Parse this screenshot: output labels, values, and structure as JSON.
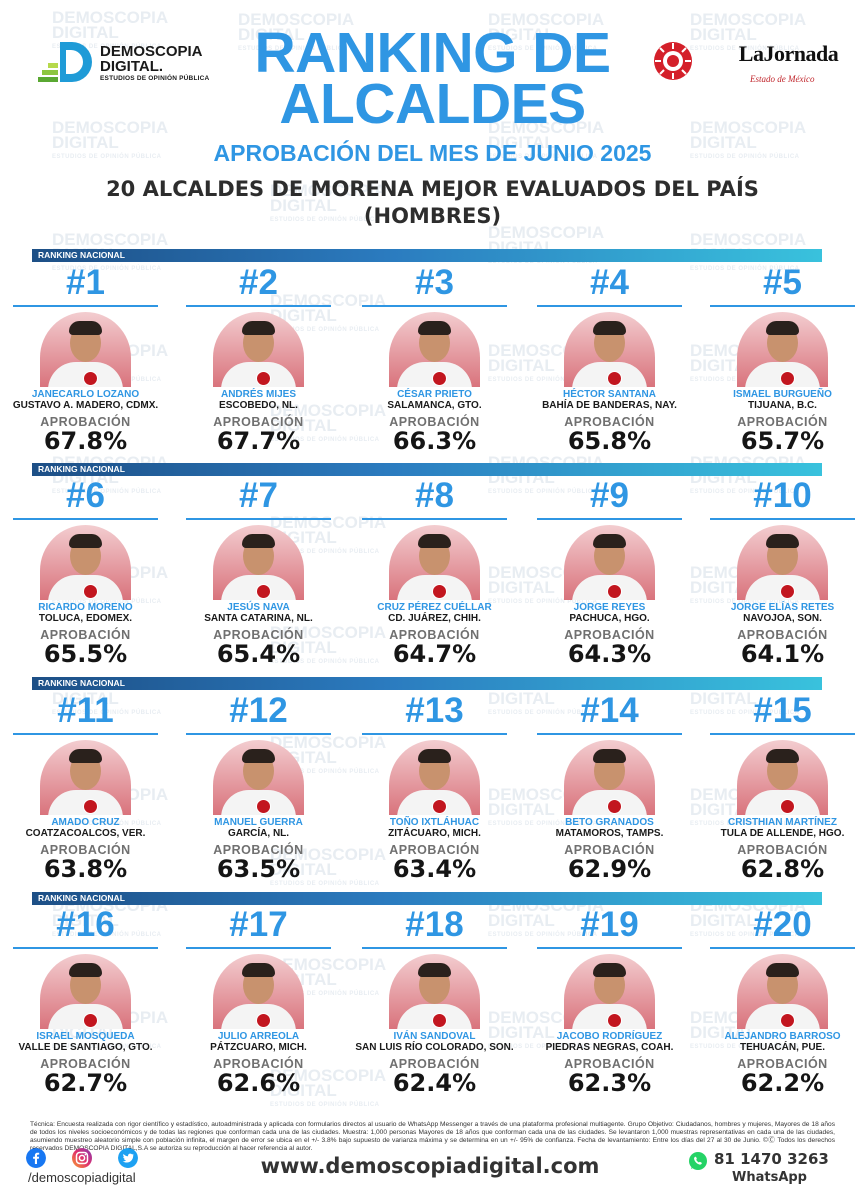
{
  "brand": {
    "logo_line1": "DEMOSCOPIA",
    "logo_line2": "DIGITAL.",
    "logo_tagline": "ESTUDIOS DE OPINIÓN PÚBLICA",
    "watermark_line1": "DEMOSCOPIA",
    "watermark_line2": "DIGITAL",
    "watermark_tagline": "ESTUDIOS DE OPINIÓN PÚBLICA",
    "partner_name": "LaJornada",
    "partner_sub": "Estado de México",
    "colors": {
      "accent_blue": "#2f96e3",
      "band_dark": "#1d4f86",
      "band_light": "#39c2dd",
      "photo_red": "#d9737c"
    }
  },
  "header": {
    "title_line1": "RANKING DE",
    "title_line2": "ALCALDES",
    "subtitle": "APROBACIÓN DEL MES DE JUNIO 2025",
    "heading_line1": "20 ALCALDES DE MORENA MEJOR EVALUADOS DEL PAÍS",
    "heading_line2": "(HOMBRES)"
  },
  "section_label": "RANKING NACIONAL",
  "approval_label": "APROBACIÓN",
  "mayors": [
    {
      "rank": "#1",
      "name": "JANECARLO LOZANO",
      "city": "GUSTAVO A. MADERO, CDMX.",
      "approval": "67.8%"
    },
    {
      "rank": "#2",
      "name": "ANDRÉS MIJES",
      "city": "ESCOBEDO, NL.",
      "approval": "67.7%"
    },
    {
      "rank": "#3",
      "name": "CÉSAR PRIETO",
      "city": "SALAMANCA, GTO.",
      "approval": "66.3%"
    },
    {
      "rank": "#4",
      "name": "HÉCTOR SANTANA",
      "city": "BAHÍA DE BANDERAS, NAY.",
      "approval": "65.8%"
    },
    {
      "rank": "#5",
      "name": "ISMAEL BURGUEÑO",
      "city": "TIJUANA, B.C.",
      "approval": "65.7%"
    },
    {
      "rank": "#6",
      "name": "RICARDO MORENO",
      "city": "TOLUCA, EDOMEX.",
      "approval": "65.5%"
    },
    {
      "rank": "#7",
      "name": "JESÚS NAVA",
      "city": "SANTA CATARINA, NL.",
      "approval": "65.4%"
    },
    {
      "rank": "#8",
      "name": "CRUZ PÉREZ CUÉLLAR",
      "city": "CD. JUÁREZ, CHIH.",
      "approval": "64.7%"
    },
    {
      "rank": "#9",
      "name": "JORGE REYES",
      "city": "PACHUCA, HGO.",
      "approval": "64.3%"
    },
    {
      "rank": "#10",
      "name": "JORGE ELÍAS RETES",
      "city": "NAVOJOA, SON.",
      "approval": "64.1%"
    },
    {
      "rank": "#11",
      "name": "AMADO CRUZ",
      "city": "COATZACOALCOS, VER.",
      "approval": "63.8%"
    },
    {
      "rank": "#12",
      "name": "MANUEL GUERRA",
      "city": "GARCÍA, NL.",
      "approval": "63.5%"
    },
    {
      "rank": "#13",
      "name": "TOÑO IXTLÁHUAC",
      "city": "ZITÁCUARO, MICH.",
      "approval": "63.4%"
    },
    {
      "rank": "#14",
      "name": "BETO GRANADOS",
      "city": "MATAMOROS, TAMPS.",
      "approval": "62.9%"
    },
    {
      "rank": "#15",
      "name": "CRISTHIAN MARTÍNEZ",
      "city": "TULA DE ALLENDE, HGO.",
      "approval": "62.8%"
    },
    {
      "rank": "#16",
      "name": "ISRAEL MOSQUEDA",
      "city": "VALLE DE SANTIAGO, GTO.",
      "approval": "62.7%"
    },
    {
      "rank": "#17",
      "name": "JULIO ARREOLA",
      "city": "PÁTZCUARO, MICH.",
      "approval": "62.6%"
    },
    {
      "rank": "#18",
      "name": "IVÁN SANDOVAL",
      "city": "SAN LUIS RÍO COLORADO, SON.",
      "approval": "62.4%"
    },
    {
      "rank": "#19",
      "name": "JACOBO RODRÍGUEZ",
      "city": "PIEDRAS NEGRAS, COAH.",
      "approval": "62.3%"
    },
    {
      "rank": "#20",
      "name": "ALEJANDRO BARROSO",
      "city": "TEHUACÁN, PUE.",
      "approval": "62.2%"
    }
  ],
  "footer": {
    "technical_note": "Técnica: Encuesta realizada con rigor científico y estadístico, autoadministrada y aplicada con formularios directos al usuario de WhatsApp Messenger a través de una plataforma profesional multiagente. Grupo Objetivo: Ciudadanos, hombres y mujeres, Mayores de 18 años de todos los niveles socioeconómicos y de todas las regiones que conforman cada una de las ciudades. Muestra: 1,000 personas Mayores de 18 años que conforman cada una de las ciudades. Se levantaron 1,000 muestras representativas en cada una de las ciudades, asumiendo muestreo aleatorio simple con población infinita, el margen de error se ubica en el +/- 3.8% bajo supuesto de varianza máxima y se determina en un +/- 95% de confianza. Fecha de levantamiento: Entre los días del 27 al 30 de Junio. ©Ⓒ Todos los derechos reservados DEMOSCOPIA DIGITAL,S.A se autoriza su reproducción al hacer referencia al autor.",
    "social_handle": "/demoscopiadigital",
    "website": "www.demoscopiadigital.com",
    "phone": "81 1470 3263",
    "whatsapp_label": "WhatsApp"
  }
}
